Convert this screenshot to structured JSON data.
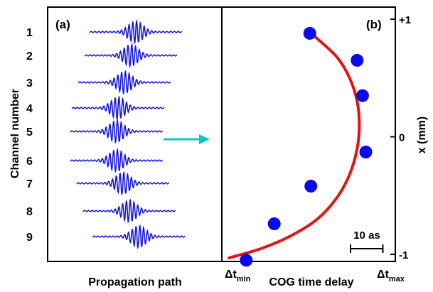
{
  "chart_data": [
    {
      "panel": "(a)",
      "type": "line",
      "title": "",
      "xlabel": "Propagation path",
      "ylabel": "Channel number",
      "channels": [
        "1",
        "2",
        "3",
        "4",
        "5",
        "6",
        "7",
        "8",
        "9"
      ],
      "pulse_center_offset": [
        0.35,
        0.2,
        0.0,
        -0.2,
        -0.25,
        -0.25,
        -0.05,
        0.15,
        0.45
      ],
      "waveform_color": "#1a1ad6",
      "arrow_color": "#11c4c4"
    },
    {
      "panel": "(b)",
      "type": "scatter",
      "title": "",
      "xlabel": "COG time delay",
      "ylabel": "x (mm)",
      "x_tick_labels": [
        {
          "main": "Δt",
          "sub": "min"
        },
        {
          "main": "Δt",
          "sub": "max"
        }
      ],
      "y_tick_labels": [
        "+1",
        "0",
        "-1"
      ],
      "ylim": [
        -1,
        1
      ],
      "xlim_as": [
        0,
        70
      ],
      "scale_bar_label": "10 as",
      "scale_bar_as": 10,
      "point_color": "#0a0aee",
      "fit_color": "#e31313",
      "points": [
        {
          "x": 39.5,
          "y": 0.88
        },
        {
          "x": 61.5,
          "y": 0.65
        },
        {
          "x": 64.0,
          "y": 0.35
        },
        {
          "x": 65.5,
          "y": -0.13
        },
        {
          "x": 40.0,
          "y": -0.42
        },
        {
          "x": 23.0,
          "y": -0.74
        },
        {
          "x": 10.0,
          "y": -1.05
        }
      ],
      "fit_curve": [
        {
          "x": 42.0,
          "y": 0.85
        },
        {
          "x": 52.0,
          "y": 0.68
        },
        {
          "x": 58.0,
          "y": 0.5
        },
        {
          "x": 61.5,
          "y": 0.3
        },
        {
          "x": 62.5,
          "y": 0.1
        },
        {
          "x": 61.5,
          "y": -0.1
        },
        {
          "x": 58.0,
          "y": -0.32
        },
        {
          "x": 52.0,
          "y": -0.52
        },
        {
          "x": 43.0,
          "y": -0.7
        },
        {
          "x": 31.0,
          "y": -0.84
        },
        {
          "x": 17.0,
          "y": -0.95
        },
        {
          "x": 2.0,
          "y": -1.03
        }
      ]
    }
  ]
}
